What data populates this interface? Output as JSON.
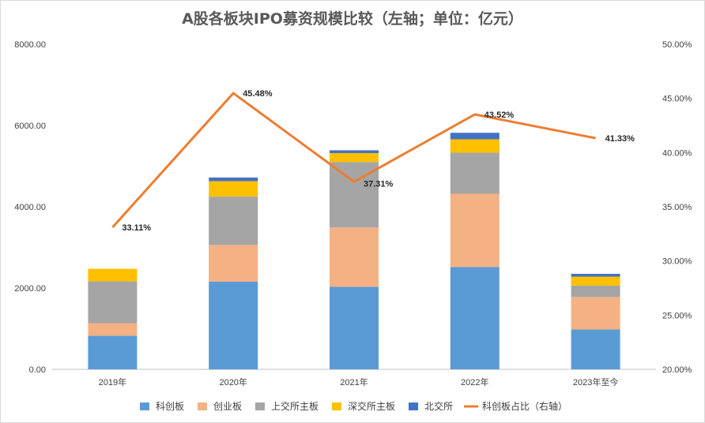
{
  "chart_data": {
    "type": "bar",
    "stacked": true,
    "title": "A股各板块IPO募资规模比较（左轴；单位：亿元）",
    "categories": [
      "2019年",
      "2020年",
      "2021年",
      "2022年",
      "2023年至今"
    ],
    "series": [
      {
        "name": "科创板",
        "color": "#5B9BD5",
        "values": [
          824,
          2160,
          2030,
          2520,
          980
        ]
      },
      {
        "name": "创业板",
        "color": "#F4B183",
        "values": [
          310,
          900,
          1460,
          1800,
          800
        ]
      },
      {
        "name": "上交所主板",
        "color": "#A5A5A5",
        "values": [
          1030,
          1190,
          1610,
          1010,
          280
        ]
      },
      {
        "name": "深交所主板",
        "color": "#FFC000",
        "values": [
          310,
          380,
          220,
          330,
          220
        ]
      },
      {
        "name": "北交所",
        "color": "#4472C4",
        "values": [
          0,
          90,
          70,
          160,
          70
        ]
      }
    ],
    "line_series": {
      "name": "科创板占比（右轴）",
      "color": "#ED7D31",
      "values": [
        33.11,
        45.48,
        37.31,
        43.52,
        41.33
      ],
      "labels": [
        "33.11%",
        "45.48%",
        "37.31%",
        "43.52%",
        "41.33%"
      ]
    },
    "y_left": {
      "min": 0,
      "max": 8000,
      "ticks": [
        "0.00",
        "2000.00",
        "4000.00",
        "6000.00",
        "8000.00"
      ]
    },
    "y_right": {
      "min": 20,
      "max": 50,
      "ticks": [
        "20.00%",
        "25.00%",
        "30.00%",
        "35.00%",
        "40.00%",
        "45.00%",
        "50.00%"
      ]
    },
    "legend_position": "bottom",
    "grid": false
  }
}
